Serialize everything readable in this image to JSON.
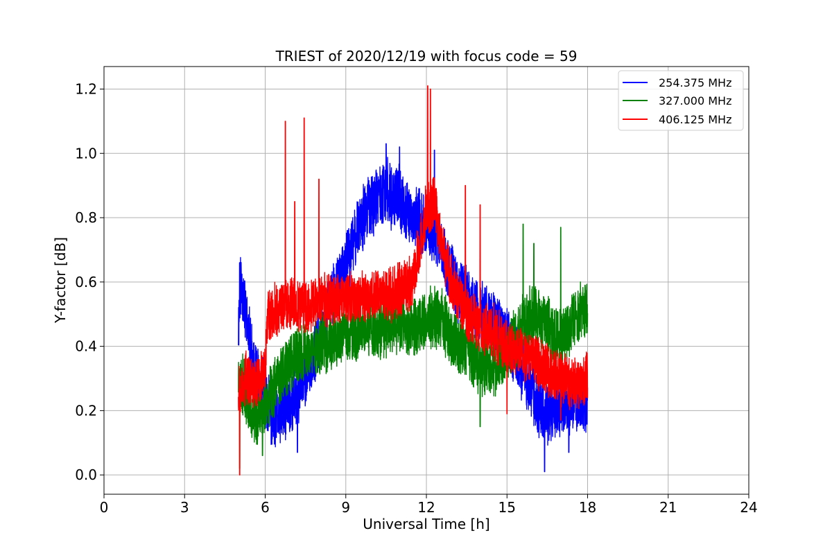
{
  "chart_data": {
    "type": "line",
    "title": "TRIEST of 2020/12/19 with focus code = 59",
    "xlabel": "Universal Time [h]",
    "ylabel": "Y-factor [dB]",
    "xlim": [
      0,
      24
    ],
    "ylim": [
      -0.06,
      1.27
    ],
    "xticks": [
      0,
      3,
      6,
      9,
      12,
      15,
      18,
      21,
      24
    ],
    "yticks": [
      0.0,
      0.2,
      0.4,
      0.6,
      0.8,
      1.0,
      1.2
    ],
    "xtick_labels": [
      "0",
      "3",
      "6",
      "9",
      "12",
      "15",
      "18",
      "21",
      "24"
    ],
    "ytick_labels": [
      "0.0",
      "0.2",
      "0.4",
      "0.6",
      "0.8",
      "1.0",
      "1.2"
    ],
    "grid": true,
    "legend_position": "top-right",
    "x_range": [
      5.0,
      18.0
    ],
    "series": [
      {
        "name": "254.375 MHz",
        "color": "#0000ff",
        "keypoints": [
          [
            5.0,
            0.45
          ],
          [
            5.1,
            0.6
          ],
          [
            5.3,
            0.48
          ],
          [
            5.6,
            0.32
          ],
          [
            6.0,
            0.25
          ],
          [
            6.3,
            0.18
          ],
          [
            7.0,
            0.22
          ],
          [
            7.5,
            0.3
          ],
          [
            8.0,
            0.42
          ],
          [
            8.5,
            0.55
          ],
          [
            9.0,
            0.65
          ],
          [
            9.5,
            0.78
          ],
          [
            10.0,
            0.85
          ],
          [
            10.5,
            0.88
          ],
          [
            11.0,
            0.86
          ],
          [
            11.5,
            0.8
          ],
          [
            12.0,
            0.78
          ],
          [
            12.5,
            0.72
          ],
          [
            13.0,
            0.6
          ],
          [
            13.5,
            0.55
          ],
          [
            14.0,
            0.5
          ],
          [
            14.5,
            0.48
          ],
          [
            15.0,
            0.42
          ],
          [
            15.5,
            0.35
          ],
          [
            16.0,
            0.25
          ],
          [
            16.5,
            0.18
          ],
          [
            17.0,
            0.22
          ],
          [
            17.5,
            0.24
          ],
          [
            18.0,
            0.22
          ]
        ],
        "spikes": [
          [
            5.05,
            0.66
          ],
          [
            7.2,
            0.07
          ],
          [
            10.5,
            1.03
          ],
          [
            11.0,
            1.02
          ],
          [
            12.3,
            1.01
          ],
          [
            16.4,
            0.01
          ],
          [
            17.3,
            0.07
          ]
        ]
      },
      {
        "name": "327.000 MHz",
        "color": "#008000",
        "keypoints": [
          [
            5.0,
            0.3
          ],
          [
            5.3,
            0.25
          ],
          [
            5.6,
            0.18
          ],
          [
            6.0,
            0.22
          ],
          [
            6.5,
            0.3
          ],
          [
            7.0,
            0.35
          ],
          [
            7.5,
            0.38
          ],
          [
            8.0,
            0.4
          ],
          [
            8.5,
            0.42
          ],
          [
            9.0,
            0.44
          ],
          [
            9.5,
            0.44
          ],
          [
            10.0,
            0.45
          ],
          [
            10.5,
            0.46
          ],
          [
            11.0,
            0.47
          ],
          [
            11.5,
            0.46
          ],
          [
            12.0,
            0.48
          ],
          [
            12.5,
            0.5
          ],
          [
            13.0,
            0.42
          ],
          [
            13.5,
            0.38
          ],
          [
            14.0,
            0.34
          ],
          [
            14.5,
            0.33
          ],
          [
            15.0,
            0.38
          ],
          [
            15.5,
            0.45
          ],
          [
            16.0,
            0.5
          ],
          [
            16.5,
            0.46
          ],
          [
            17.0,
            0.42
          ],
          [
            17.5,
            0.48
          ],
          [
            18.0,
            0.52
          ]
        ],
        "spikes": [
          [
            5.05,
            0.02
          ],
          [
            5.9,
            0.06
          ],
          [
            15.6,
            0.78
          ],
          [
            17.0,
            0.77
          ],
          [
            16.0,
            0.72
          ],
          [
            14.0,
            0.15
          ]
        ]
      },
      {
        "name": "406.125 MHz",
        "color": "#ff0000",
        "keypoints": [
          [
            5.0,
            0.28
          ],
          [
            5.3,
            0.3
          ],
          [
            5.6,
            0.28
          ],
          [
            6.0,
            0.32
          ],
          [
            6.1,
            0.5
          ],
          [
            6.5,
            0.52
          ],
          [
            7.0,
            0.53
          ],
          [
            7.5,
            0.52
          ],
          [
            8.0,
            0.54
          ],
          [
            8.5,
            0.55
          ],
          [
            9.0,
            0.54
          ],
          [
            9.5,
            0.55
          ],
          [
            10.0,
            0.56
          ],
          [
            10.5,
            0.56
          ],
          [
            11.0,
            0.57
          ],
          [
            11.5,
            0.6
          ],
          [
            12.0,
            0.82
          ],
          [
            12.3,
            0.86
          ],
          [
            12.6,
            0.7
          ],
          [
            13.0,
            0.58
          ],
          [
            13.5,
            0.5
          ],
          [
            14.0,
            0.46
          ],
          [
            14.5,
            0.44
          ],
          [
            15.0,
            0.4
          ],
          [
            15.5,
            0.38
          ],
          [
            16.0,
            0.36
          ],
          [
            16.5,
            0.32
          ],
          [
            17.0,
            0.3
          ],
          [
            17.5,
            0.28
          ],
          [
            18.0,
            0.3
          ]
        ],
        "spikes": [
          [
            5.05,
            0.0
          ],
          [
            6.75,
            1.1
          ],
          [
            7.45,
            1.11
          ],
          [
            7.1,
            0.85
          ],
          [
            8.0,
            0.92
          ],
          [
            12.05,
            1.21
          ],
          [
            12.15,
            1.2
          ],
          [
            13.45,
            0.9
          ],
          [
            14.0,
            0.84
          ],
          [
            15.0,
            0.19
          ],
          [
            17.0,
            0.17
          ]
        ]
      }
    ]
  }
}
